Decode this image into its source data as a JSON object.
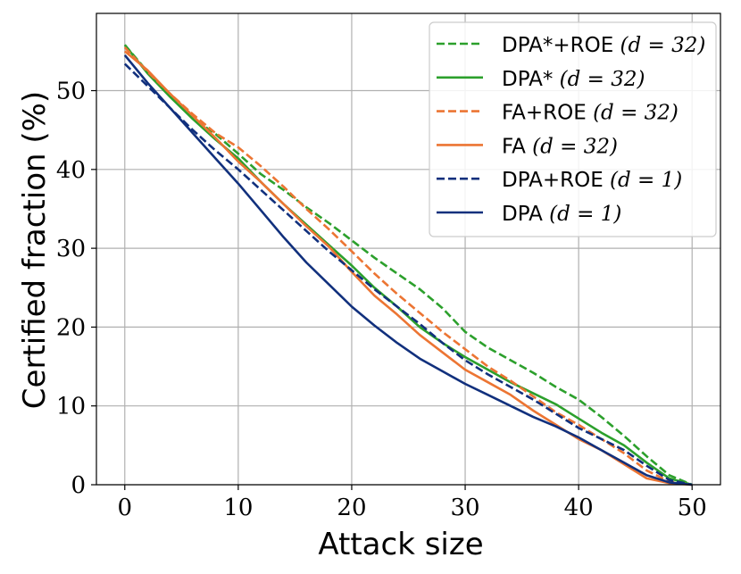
{
  "chart_data": {
    "type": "line",
    "title": "",
    "xlabel": "Attack size",
    "ylabel": "Certified fraction (%)",
    "xlim": [
      -2.5,
      52.5
    ],
    "ylim": [
      0,
      59.8
    ],
    "xticks": [
      0,
      10,
      20,
      30,
      40,
      50
    ],
    "yticks": [
      0,
      10,
      20,
      30,
      40,
      50
    ],
    "grid": true,
    "legend_position": "top-right",
    "x": [
      0,
      2,
      4,
      6,
      8,
      10,
      12,
      14,
      16,
      18,
      20,
      22,
      24,
      26,
      28,
      30,
      32,
      34,
      36,
      38,
      40,
      42,
      44,
      46,
      48,
      50
    ],
    "series": [
      {
        "name": "DPA*+ROE",
        "label_main": "DPA*+ROE",
        "label_math": "(d = 32)",
        "color": "#2ca02c",
        "style": "dashed",
        "values": [
          55.8,
          52.4,
          49.5,
          46.5,
          44.5,
          42.0,
          39.4,
          37.4,
          35.2,
          33.2,
          31.0,
          28.8,
          26.8,
          24.8,
          22.4,
          19.4,
          17.4,
          15.8,
          14.2,
          12.4,
          10.8,
          8.6,
          6.2,
          3.6,
          1.2,
          0.0
        ]
      },
      {
        "name": "DPA*",
        "label_main": "DPA*",
        "label_math": "(d = 32)",
        "color": "#2ca02c",
        "style": "solid",
        "values": [
          55.8,
          52.2,
          49.2,
          46.4,
          43.8,
          41.4,
          38.4,
          35.6,
          33.0,
          30.4,
          27.8,
          25.0,
          22.6,
          20.0,
          18.0,
          16.2,
          14.6,
          13.0,
          11.6,
          10.2,
          8.4,
          6.6,
          5.0,
          2.8,
          0.8,
          0.0
        ]
      },
      {
        "name": "FA+ROE",
        "label_main": "FA+ROE",
        "label_math": "(d = 32)",
        "color": "#ec7533",
        "style": "dashed",
        "values": [
          55.5,
          52.4,
          49.6,
          47.0,
          44.6,
          42.8,
          40.4,
          37.8,
          35.0,
          32.4,
          29.6,
          26.8,
          24.2,
          21.8,
          19.4,
          17.2,
          15.0,
          13.2,
          11.2,
          9.2,
          7.6,
          5.8,
          4.0,
          1.8,
          0.4,
          0.0
        ]
      },
      {
        "name": "FA",
        "label_main": "FA",
        "label_math": "(d = 32)",
        "color": "#ec7533",
        "style": "solid",
        "values": [
          55.0,
          52.6,
          49.6,
          46.8,
          44.0,
          41.0,
          38.4,
          35.6,
          32.8,
          30.2,
          27.0,
          24.0,
          21.6,
          19.0,
          16.8,
          14.6,
          13.0,
          11.4,
          9.4,
          7.6,
          5.8,
          4.4,
          2.6,
          0.8,
          0.2,
          0.0
        ]
      },
      {
        "name": "DPA+ROE",
        "label_main": "DPA+ROE",
        "label_math": "(d = 1)",
        "color": "#11307d",
        "style": "dashed",
        "values": [
          53.4,
          50.6,
          47.8,
          45.0,
          42.4,
          40.0,
          37.4,
          34.8,
          32.2,
          29.6,
          27.2,
          24.8,
          22.6,
          20.4,
          18.0,
          15.8,
          14.0,
          12.4,
          10.8,
          9.0,
          7.2,
          5.8,
          4.4,
          2.4,
          0.6,
          0.0
        ]
      },
      {
        "name": "DPA",
        "label_main": "DPA",
        "label_math": "(d = 1)",
        "color": "#11307d",
        "style": "solid",
        "values": [
          54.5,
          51.0,
          47.8,
          44.6,
          41.4,
          38.2,
          34.8,
          31.4,
          28.2,
          25.4,
          22.6,
          20.2,
          18.0,
          16.0,
          14.4,
          12.8,
          11.4,
          10.0,
          8.6,
          7.4,
          6.0,
          4.4,
          2.8,
          1.2,
          0.3,
          0.0
        ]
      }
    ]
  }
}
